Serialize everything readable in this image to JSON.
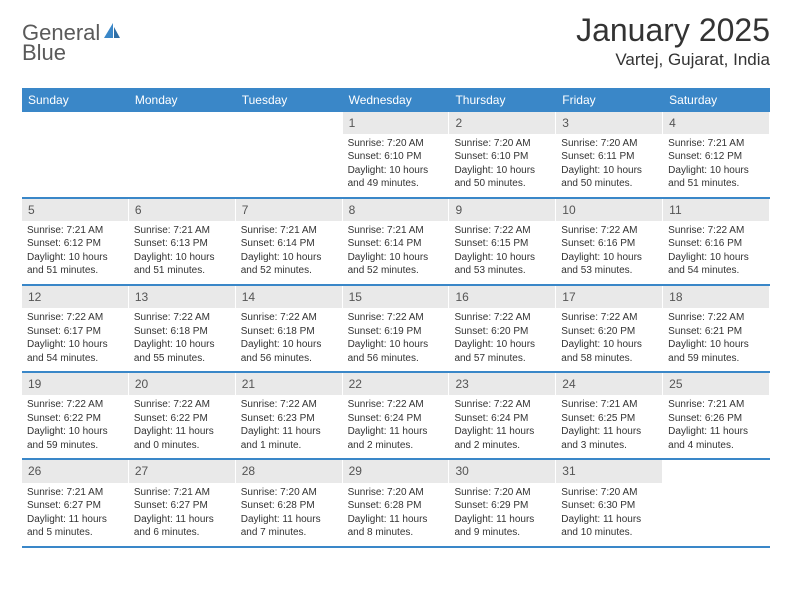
{
  "logo": {
    "word1": "General",
    "word2": "Blue"
  },
  "colors": {
    "headerBlue": "#3a87c8",
    "dayNumBg": "#e9e9e9",
    "text": "#333333",
    "logoGray": "#5a5a5a"
  },
  "title": "January 2025",
  "location": "Vartej, Gujarat, India",
  "dayNames": [
    "Sunday",
    "Monday",
    "Tuesday",
    "Wednesday",
    "Thursday",
    "Friday",
    "Saturday"
  ],
  "weeks": [
    [
      {
        "num": "",
        "sunrise": "",
        "sunset": "",
        "daylight": ""
      },
      {
        "num": "",
        "sunrise": "",
        "sunset": "",
        "daylight": ""
      },
      {
        "num": "",
        "sunrise": "",
        "sunset": "",
        "daylight": ""
      },
      {
        "num": "1",
        "sunrise": "Sunrise: 7:20 AM",
        "sunset": "Sunset: 6:10 PM",
        "daylight": "Daylight: 10 hours and 49 minutes."
      },
      {
        "num": "2",
        "sunrise": "Sunrise: 7:20 AM",
        "sunset": "Sunset: 6:10 PM",
        "daylight": "Daylight: 10 hours and 50 minutes."
      },
      {
        "num": "3",
        "sunrise": "Sunrise: 7:20 AM",
        "sunset": "Sunset: 6:11 PM",
        "daylight": "Daylight: 10 hours and 50 minutes."
      },
      {
        "num": "4",
        "sunrise": "Sunrise: 7:21 AM",
        "sunset": "Sunset: 6:12 PM",
        "daylight": "Daylight: 10 hours and 51 minutes."
      }
    ],
    [
      {
        "num": "5",
        "sunrise": "Sunrise: 7:21 AM",
        "sunset": "Sunset: 6:12 PM",
        "daylight": "Daylight: 10 hours and 51 minutes."
      },
      {
        "num": "6",
        "sunrise": "Sunrise: 7:21 AM",
        "sunset": "Sunset: 6:13 PM",
        "daylight": "Daylight: 10 hours and 51 minutes."
      },
      {
        "num": "7",
        "sunrise": "Sunrise: 7:21 AM",
        "sunset": "Sunset: 6:14 PM",
        "daylight": "Daylight: 10 hours and 52 minutes."
      },
      {
        "num": "8",
        "sunrise": "Sunrise: 7:21 AM",
        "sunset": "Sunset: 6:14 PM",
        "daylight": "Daylight: 10 hours and 52 minutes."
      },
      {
        "num": "9",
        "sunrise": "Sunrise: 7:22 AM",
        "sunset": "Sunset: 6:15 PM",
        "daylight": "Daylight: 10 hours and 53 minutes."
      },
      {
        "num": "10",
        "sunrise": "Sunrise: 7:22 AM",
        "sunset": "Sunset: 6:16 PM",
        "daylight": "Daylight: 10 hours and 53 minutes."
      },
      {
        "num": "11",
        "sunrise": "Sunrise: 7:22 AM",
        "sunset": "Sunset: 6:16 PM",
        "daylight": "Daylight: 10 hours and 54 minutes."
      }
    ],
    [
      {
        "num": "12",
        "sunrise": "Sunrise: 7:22 AM",
        "sunset": "Sunset: 6:17 PM",
        "daylight": "Daylight: 10 hours and 54 minutes."
      },
      {
        "num": "13",
        "sunrise": "Sunrise: 7:22 AM",
        "sunset": "Sunset: 6:18 PM",
        "daylight": "Daylight: 10 hours and 55 minutes."
      },
      {
        "num": "14",
        "sunrise": "Sunrise: 7:22 AM",
        "sunset": "Sunset: 6:18 PM",
        "daylight": "Daylight: 10 hours and 56 minutes."
      },
      {
        "num": "15",
        "sunrise": "Sunrise: 7:22 AM",
        "sunset": "Sunset: 6:19 PM",
        "daylight": "Daylight: 10 hours and 56 minutes."
      },
      {
        "num": "16",
        "sunrise": "Sunrise: 7:22 AM",
        "sunset": "Sunset: 6:20 PM",
        "daylight": "Daylight: 10 hours and 57 minutes."
      },
      {
        "num": "17",
        "sunrise": "Sunrise: 7:22 AM",
        "sunset": "Sunset: 6:20 PM",
        "daylight": "Daylight: 10 hours and 58 minutes."
      },
      {
        "num": "18",
        "sunrise": "Sunrise: 7:22 AM",
        "sunset": "Sunset: 6:21 PM",
        "daylight": "Daylight: 10 hours and 59 minutes."
      }
    ],
    [
      {
        "num": "19",
        "sunrise": "Sunrise: 7:22 AM",
        "sunset": "Sunset: 6:22 PM",
        "daylight": "Daylight: 10 hours and 59 minutes."
      },
      {
        "num": "20",
        "sunrise": "Sunrise: 7:22 AM",
        "sunset": "Sunset: 6:22 PM",
        "daylight": "Daylight: 11 hours and 0 minutes."
      },
      {
        "num": "21",
        "sunrise": "Sunrise: 7:22 AM",
        "sunset": "Sunset: 6:23 PM",
        "daylight": "Daylight: 11 hours and 1 minute."
      },
      {
        "num": "22",
        "sunrise": "Sunrise: 7:22 AM",
        "sunset": "Sunset: 6:24 PM",
        "daylight": "Daylight: 11 hours and 2 minutes."
      },
      {
        "num": "23",
        "sunrise": "Sunrise: 7:22 AM",
        "sunset": "Sunset: 6:24 PM",
        "daylight": "Daylight: 11 hours and 2 minutes."
      },
      {
        "num": "24",
        "sunrise": "Sunrise: 7:21 AM",
        "sunset": "Sunset: 6:25 PM",
        "daylight": "Daylight: 11 hours and 3 minutes."
      },
      {
        "num": "25",
        "sunrise": "Sunrise: 7:21 AM",
        "sunset": "Sunset: 6:26 PM",
        "daylight": "Daylight: 11 hours and 4 minutes."
      }
    ],
    [
      {
        "num": "26",
        "sunrise": "Sunrise: 7:21 AM",
        "sunset": "Sunset: 6:27 PM",
        "daylight": "Daylight: 11 hours and 5 minutes."
      },
      {
        "num": "27",
        "sunrise": "Sunrise: 7:21 AM",
        "sunset": "Sunset: 6:27 PM",
        "daylight": "Daylight: 11 hours and 6 minutes."
      },
      {
        "num": "28",
        "sunrise": "Sunrise: 7:20 AM",
        "sunset": "Sunset: 6:28 PM",
        "daylight": "Daylight: 11 hours and 7 minutes."
      },
      {
        "num": "29",
        "sunrise": "Sunrise: 7:20 AM",
        "sunset": "Sunset: 6:28 PM",
        "daylight": "Daylight: 11 hours and 8 minutes."
      },
      {
        "num": "30",
        "sunrise": "Sunrise: 7:20 AM",
        "sunset": "Sunset: 6:29 PM",
        "daylight": "Daylight: 11 hours and 9 minutes."
      },
      {
        "num": "31",
        "sunrise": "Sunrise: 7:20 AM",
        "sunset": "Sunset: 6:30 PM",
        "daylight": "Daylight: 11 hours and 10 minutes."
      },
      {
        "num": "",
        "sunrise": "",
        "sunset": "",
        "daylight": ""
      }
    ]
  ]
}
